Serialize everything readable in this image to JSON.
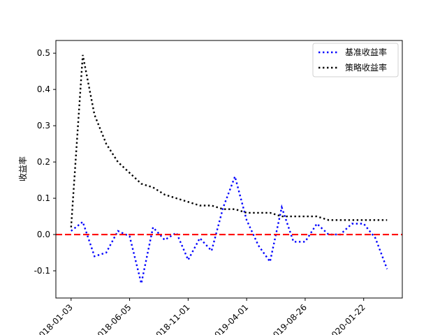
{
  "chart_data": {
    "type": "line",
    "ylabel": "收益率",
    "x_tick_labels": [
      "2018-01-03",
      "2018-06-05",
      "2018-11-01",
      "2019-04-01",
      "2019-08-26",
      "2020-01-22"
    ],
    "ylim": [
      -0.175,
      0.535
    ],
    "y_ticks": [
      -0.1,
      0.0,
      0.1,
      0.2,
      0.3,
      0.4,
      0.5
    ],
    "y_tick_labels": [
      "-0.1",
      "0.0",
      "0.1",
      "0.2",
      "0.3",
      "0.4",
      "0.5"
    ],
    "legend_position": "top-right",
    "grid": false,
    "reference_line": {
      "y": 0.0,
      "color": "#ff0000",
      "style": "dashed"
    },
    "series": [
      {
        "name": "基准收益率",
        "color": "#0000ff",
        "style": "dotted",
        "x": [
          0,
          1,
          2,
          3,
          4,
          5,
          6,
          7,
          8,
          9,
          10,
          11,
          12,
          13,
          14,
          15,
          16,
          17,
          18,
          19,
          20,
          21,
          22,
          23,
          24,
          25,
          26,
          27
        ],
        "values": [
          0.01,
          0.035,
          -0.06,
          -0.05,
          0.01,
          -0.005,
          -0.135,
          0.02,
          -0.015,
          0.005,
          -0.07,
          -0.01,
          -0.045,
          0.075,
          0.16,
          0.04,
          -0.03,
          -0.075,
          0.075,
          -0.02,
          -0.02,
          0.03,
          0.0,
          0.0,
          0.03,
          0.03,
          -0.01,
          -0.095
        ]
      },
      {
        "name": "策略收益率",
        "color": "#000000",
        "style": "dotted",
        "x": [
          0,
          1,
          2,
          3,
          4,
          5,
          6,
          7,
          8,
          9,
          10,
          11,
          12,
          13,
          14,
          15,
          16,
          17,
          18,
          19,
          20,
          21,
          22,
          23,
          24,
          25,
          26,
          27
        ],
        "values": [
          0.02,
          0.495,
          0.33,
          0.25,
          0.2,
          0.17,
          0.14,
          0.13,
          0.11,
          0.1,
          0.09,
          0.08,
          0.08,
          0.07,
          0.07,
          0.06,
          0.06,
          0.06,
          0.05,
          0.05,
          0.05,
          0.05,
          0.04,
          0.04,
          0.04,
          0.04,
          0.04,
          0.04
        ]
      }
    ]
  }
}
